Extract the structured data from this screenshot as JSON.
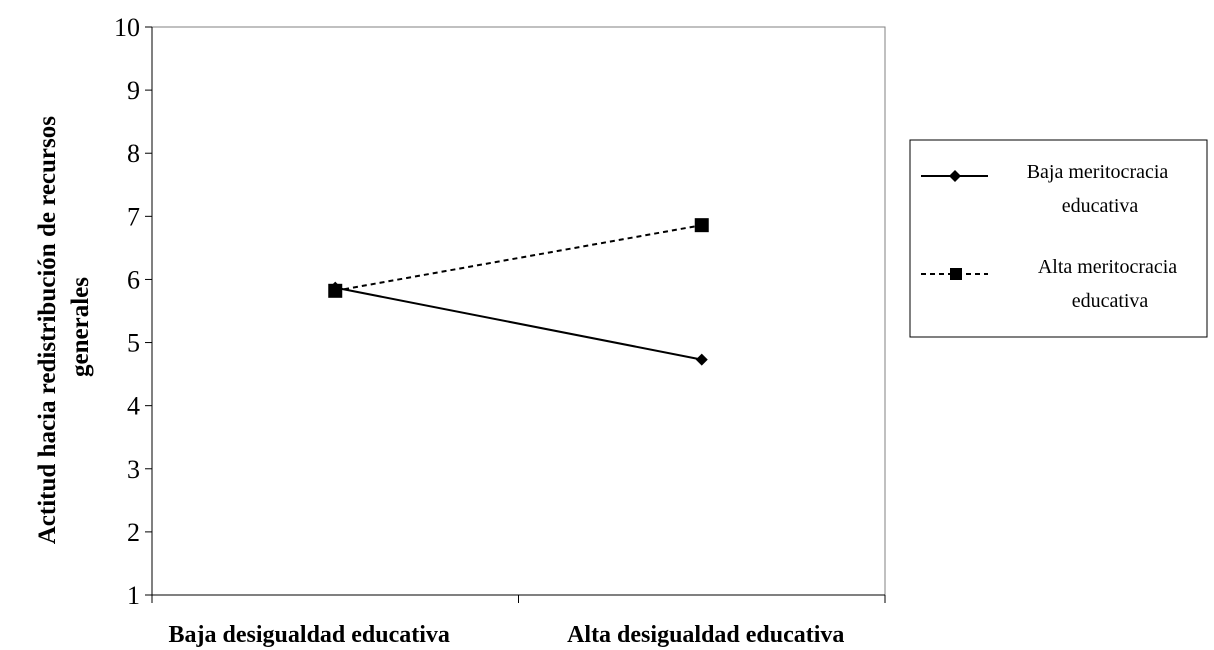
{
  "chart_data": {
    "type": "line",
    "categories": [
      "Baja desigualdad educativa",
      "Alta desigualdad educativa"
    ],
    "series": [
      {
        "name_lines": [
          "Baja meritocracia",
          "educativa"
        ],
        "values": [
          5.87,
          4.73
        ],
        "line_style": "solid",
        "marker": "diamond",
        "color": "#000000"
      },
      {
        "name_lines": [
          "Alta meritocracia",
          "educativa"
        ],
        "values": [
          5.82,
          6.86
        ],
        "line_style": "dashed",
        "marker": "square",
        "color": "#000000"
      }
    ],
    "ylabel_lines": [
      "Actitud hacia redistribución de recursos",
      "generales"
    ],
    "ylim": [
      1,
      10
    ],
    "yticks": [
      "1",
      "2",
      "3",
      "4",
      "5",
      "6",
      "7",
      "8",
      "9",
      "10"
    ],
    "grid": false,
    "legend": "right"
  }
}
